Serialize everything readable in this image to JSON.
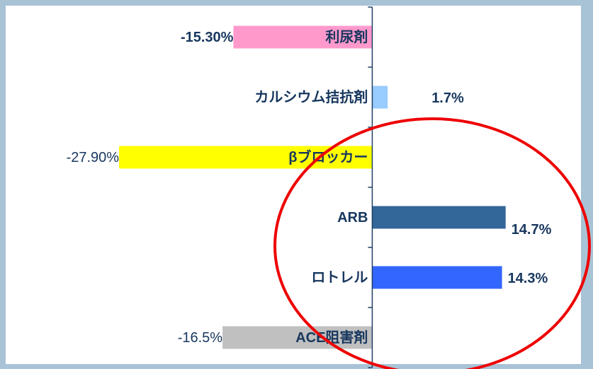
{
  "chart_data": {
    "type": "hbar",
    "categories": [
      "利尿剤",
      "カルシウム拮抗剤",
      "βブロッカー",
      "ARB",
      "ロトレル",
      "ACE阻害剤"
    ],
    "values": [
      -15.3,
      1.7,
      -27.9,
      14.7,
      14.3,
      -16.5
    ],
    "value_labels": [
      "-15.30%",
      "1.7%",
      "-27.90%",
      "14.7%",
      "14.3%",
      "-16.5%"
    ],
    "colors": [
      "#ff99cc",
      "#99ccff",
      "#ffff00",
      "#336699",
      "#3366ff",
      "#c0c0c0"
    ],
    "xlim": [
      -40.4,
      23
    ]
  }
}
